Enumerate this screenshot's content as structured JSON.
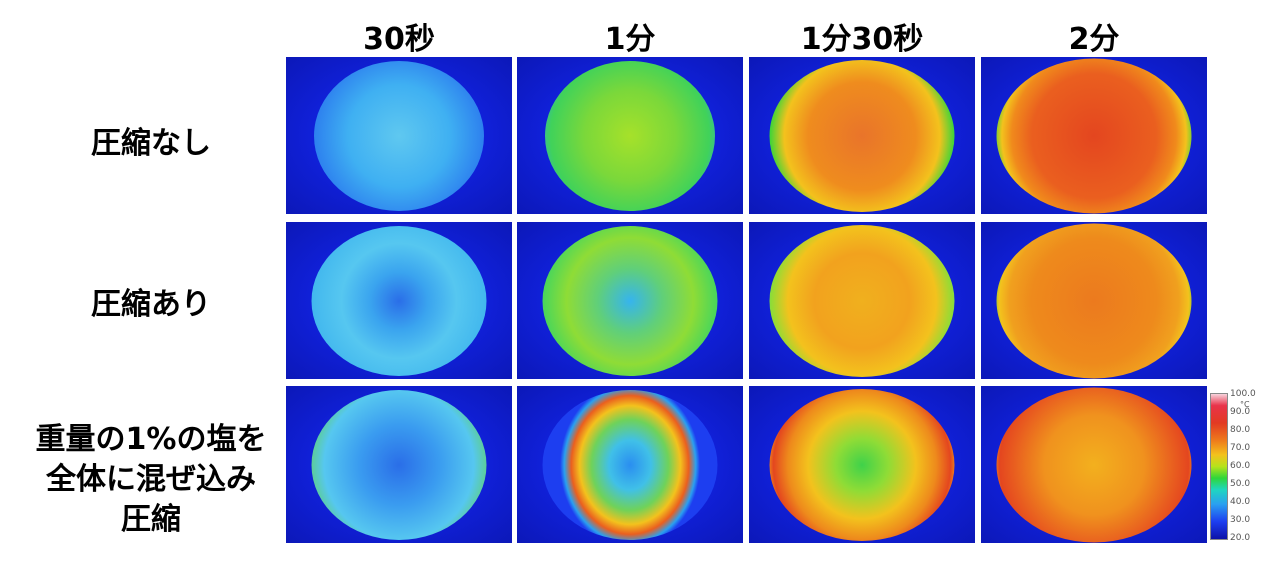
{
  "columns": [
    "30秒",
    "1分",
    "1分30秒",
    "2分"
  ],
  "rows": [
    {
      "lines": [
        "圧縮なし"
      ]
    },
    {
      "lines": [
        "圧縮あり"
      ]
    },
    {
      "lines": [
        "重量の1%の塩を",
        "全体に混ぜ込み",
        "圧縮"
      ]
    }
  ],
  "colorbar": {
    "unit": "°C",
    "ticks": [
      "100.0",
      "90.0",
      "80.0",
      "70.0",
      "60.0",
      "50.0",
      "40.0",
      "30.0",
      "20.0"
    ]
  },
  "colors": {
    "background_blue": "#1020d8",
    "cool": "#2aa0f0",
    "mid": "#2fd63a",
    "warm": "#f3c21d",
    "hot": "#e23a22"
  }
}
